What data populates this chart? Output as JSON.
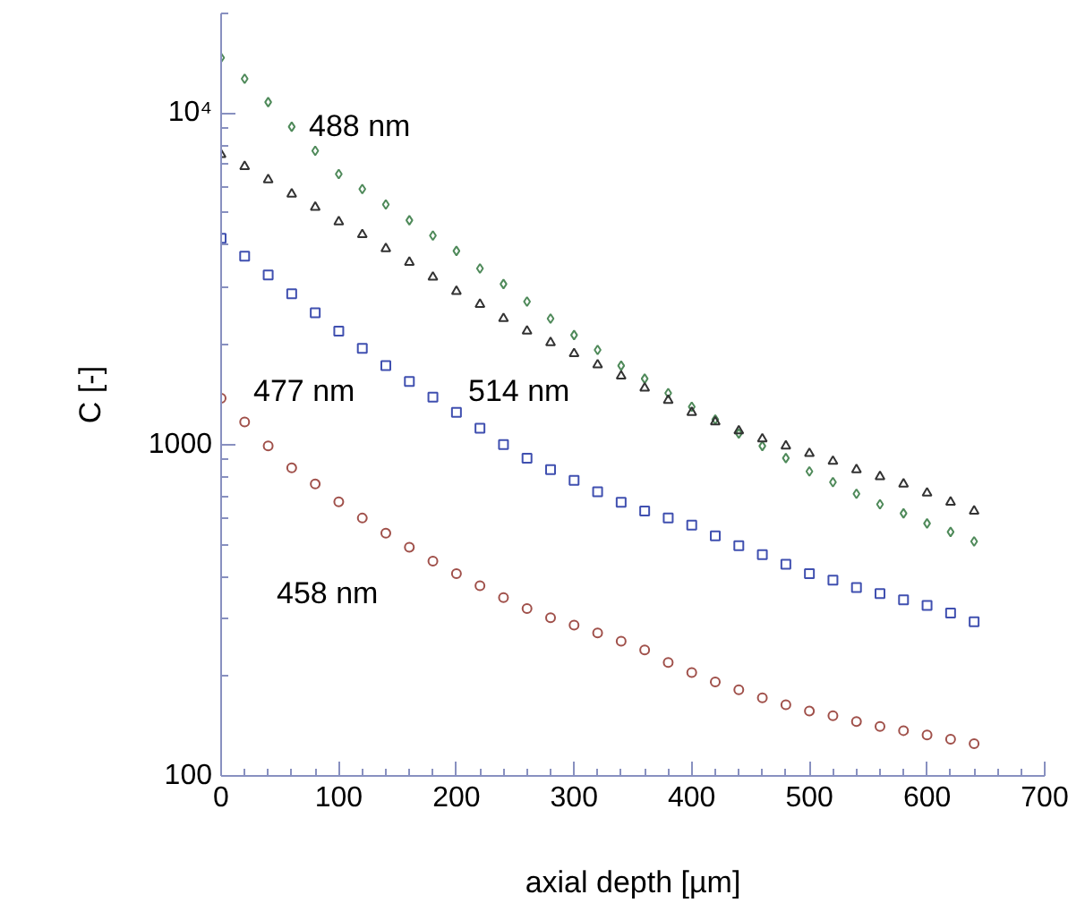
{
  "chart_data": {
    "type": "scatter",
    "xlabel": "axial depth [µm]",
    "ylabel": "C [-]",
    "log": "y",
    "xlim": [
      0,
      700
    ],
    "xticks": [
      0,
      100,
      200,
      300,
      400,
      500,
      600,
      700
    ],
    "ylim": [
      100,
      20000
    ],
    "yticks": [
      100,
      1000,
      {
        "value": 10000,
        "label": "10⁴"
      }
    ],
    "grid": false,
    "x": [
      0,
      20,
      40,
      60,
      80,
      100,
      120,
      140,
      160,
      180,
      200,
      220,
      240,
      260,
      280,
      300,
      320,
      340,
      360,
      380,
      400,
      420,
      440,
      460,
      480,
      500,
      520,
      540,
      560,
      580,
      600,
      620,
      640
    ],
    "series": [
      {
        "color": "#4f8a5a",
        "marker": "diamond",
        "values": [
          14700,
          12700,
          10800,
          9100,
          7700,
          6550,
          5900,
          5300,
          4750,
          4270,
          3840,
          3400,
          3050,
          2700,
          2400,
          2140,
          1930,
          1730,
          1580,
          1430,
          1300,
          1190,
          1080,
          990,
          910,
          830,
          770,
          710,
          660,
          620,
          578,
          545,
          510
        ]
      },
      {
        "color": "#333333",
        "marker": "triangle",
        "values": [
          7500,
          6900,
          6300,
          5700,
          5200,
          4700,
          4300,
          3900,
          3550,
          3200,
          2900,
          2650,
          2400,
          2200,
          2030,
          1880,
          1740,
          1610,
          1480,
          1360,
          1250,
          1170,
          1100,
          1040,
          990,
          940,
          890,
          840,
          800,
          760,
          714,
          670,
          630
        ]
      },
      {
        "color": "#4050b0",
        "marker": "square",
        "values": [
          4190,
          3700,
          3250,
          2850,
          2500,
          2200,
          1950,
          1730,
          1550,
          1390,
          1250,
          1120,
          1000,
          910,
          840,
          780,
          720,
          670,
          630,
          600,
          571,
          530,
          495,
          465,
          435,
          408,
          390,
          370,
          355,
          340,
          327,
          310,
          292
        ]
      },
      {
        "color": "#a0504a",
        "marker": "circle",
        "values": [
          1380,
          1170,
          990,
          850,
          760,
          672,
          600,
          540,
          490,
          445,
          408,
          375,
          345,
          320,
          300,
          285,
          270,
          255,
          240,
          220,
          205,
          192,
          182,
          172,
          164,
          157,
          152,
          146,
          141,
          137,
          133,
          129,
          125
        ]
      }
    ],
    "annotations": [
      "488 nm",
      "477 nm",
      "514 nm",
      "458 nm"
    ]
  }
}
